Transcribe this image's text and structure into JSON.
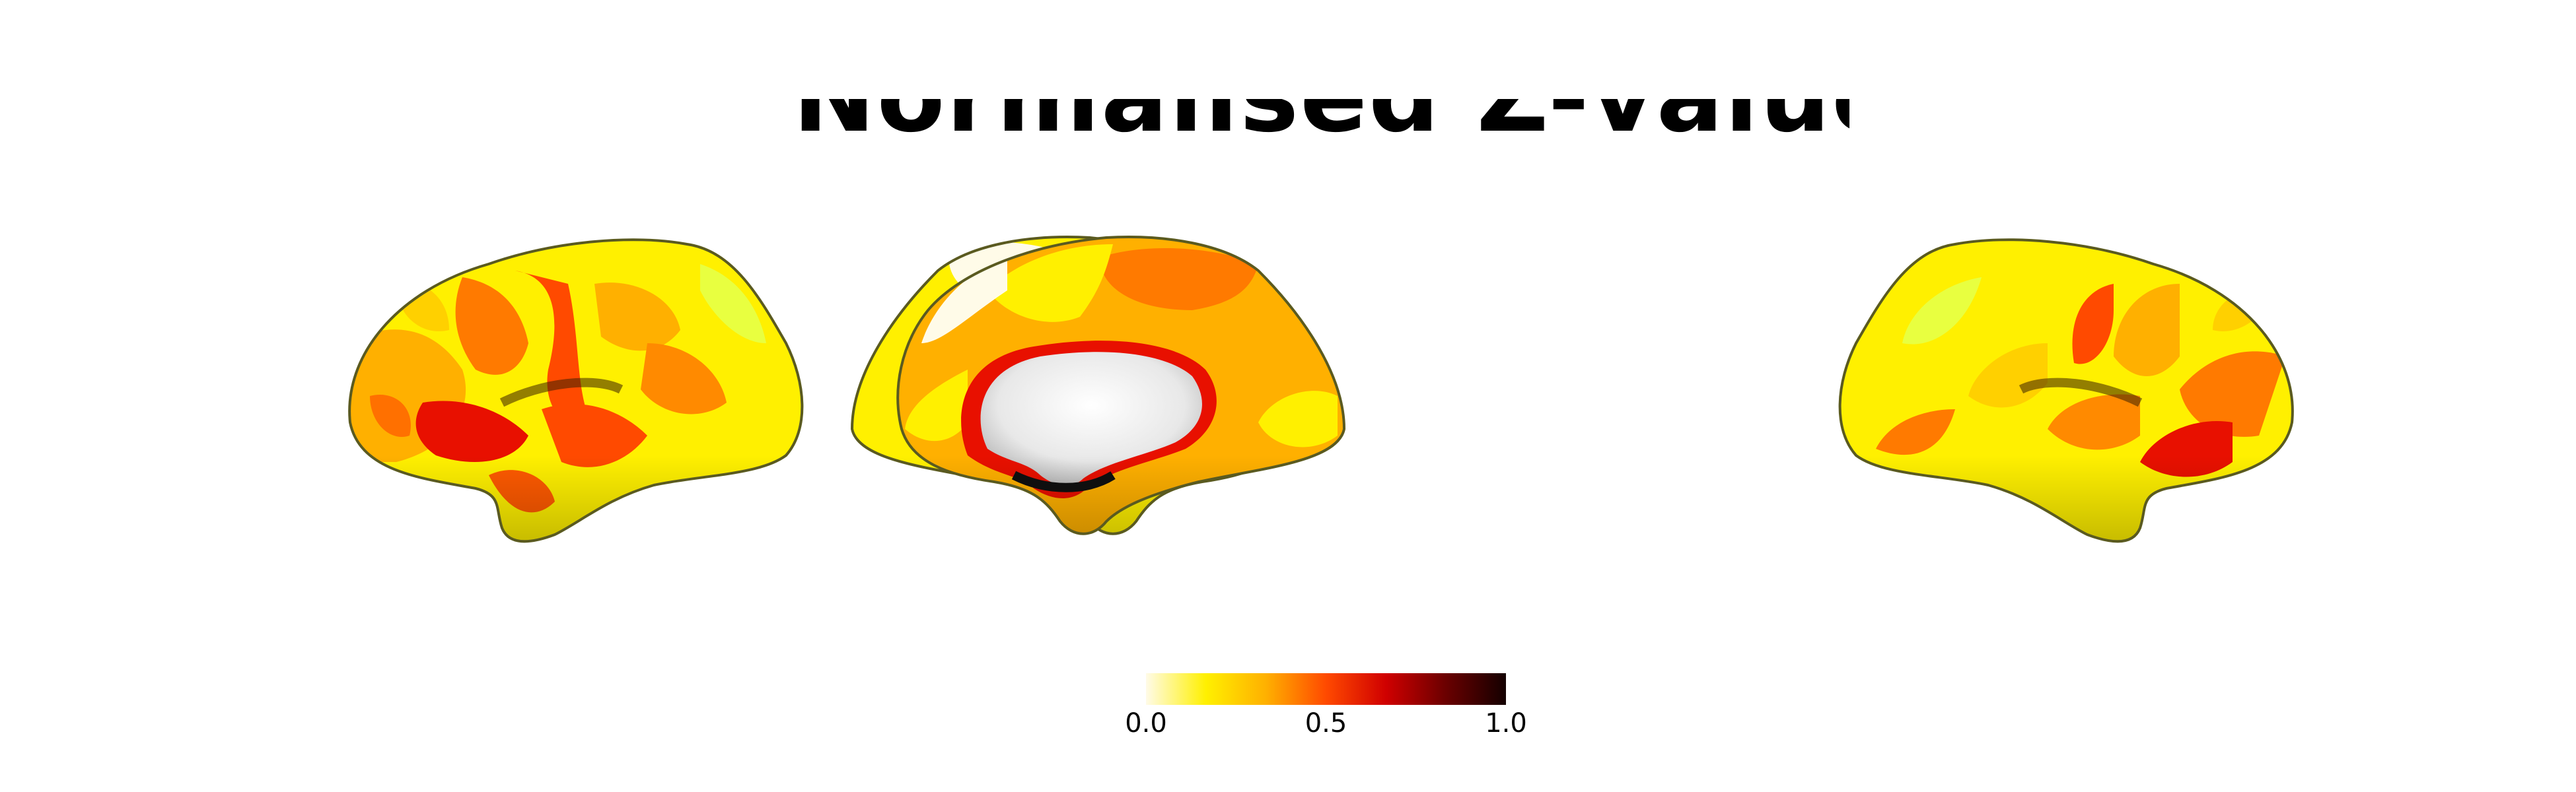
{
  "title": "Normalised Z-values",
  "colormap": {
    "name": "hot-reversed",
    "stops": [
      "#fffbe8",
      "#fff000",
      "#ffb000",
      "#ff4a00",
      "#d00000",
      "#6a0000",
      "#140000"
    ]
  },
  "colorbar": {
    "ticks": [
      {
        "label": "0.0",
        "value": 0.0
      },
      {
        "label": "0.5",
        "value": 0.5
      },
      {
        "label": "1.0",
        "value": 1.0
      }
    ],
    "range": [
      0.0,
      1.0
    ]
  },
  "views": [
    {
      "name": "left-lateral"
    },
    {
      "name": "left-medial"
    },
    {
      "name": "right-medial"
    },
    {
      "name": "right-lateral"
    }
  ],
  "surface_colors": {
    "medial_wall": "#e9e9e9",
    "outline": "#5a5a20",
    "shadow": "#101010"
  }
}
